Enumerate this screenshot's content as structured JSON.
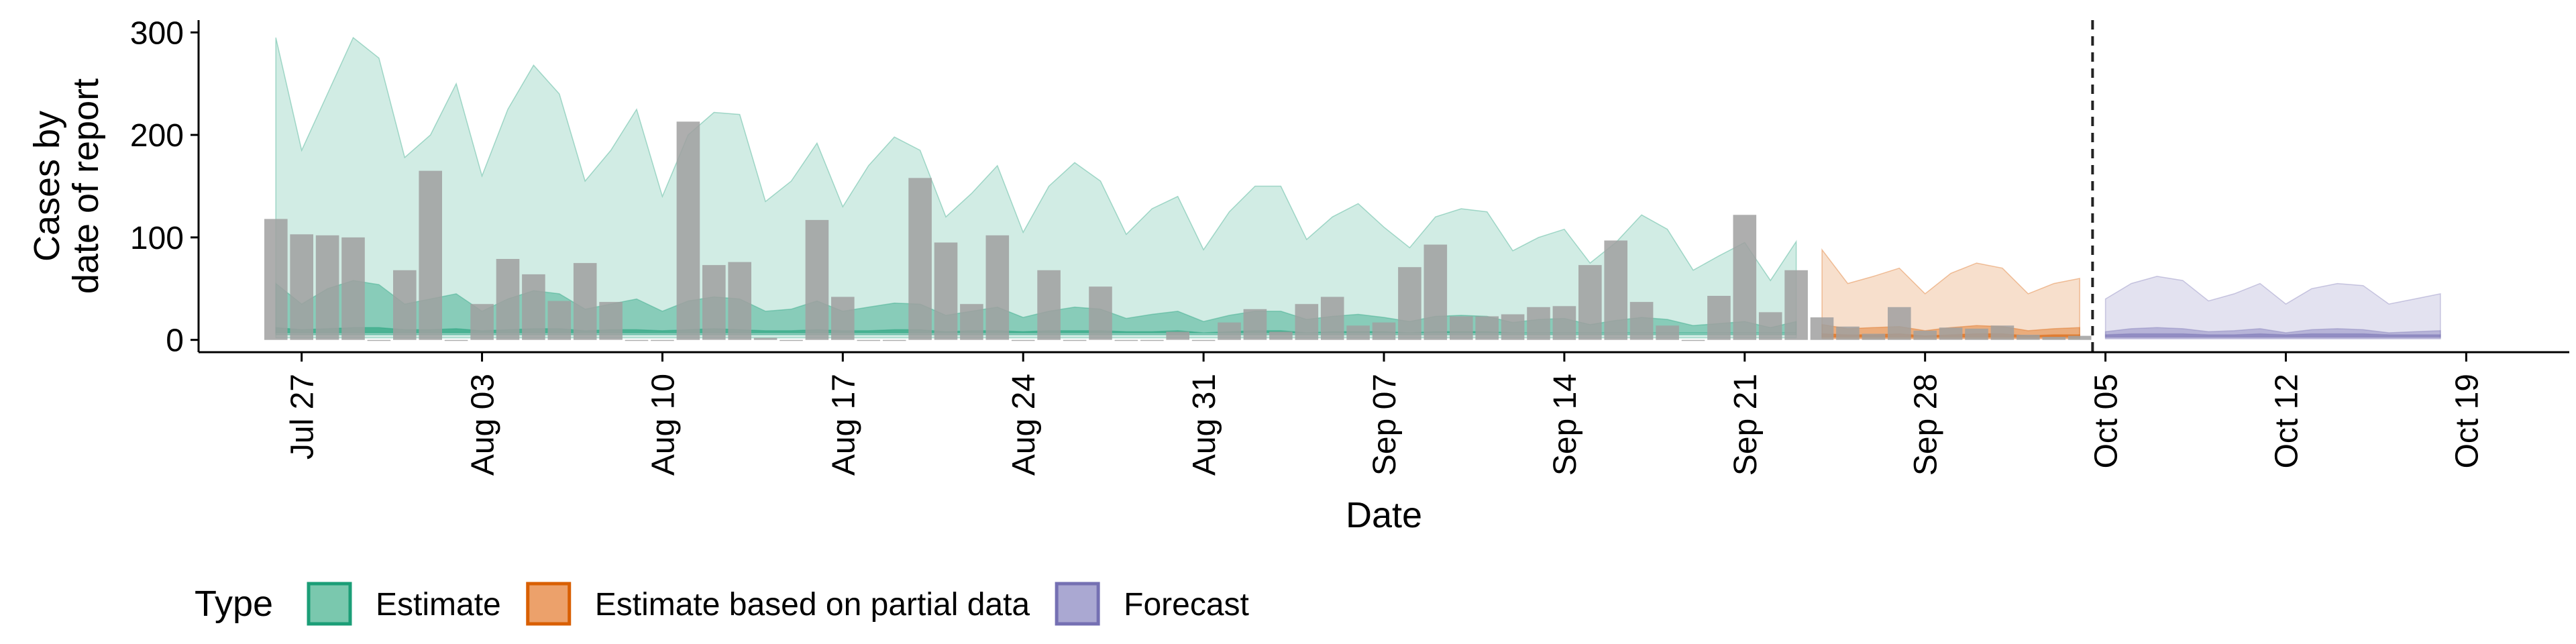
{
  "chart_data": {
    "type": "area",
    "xlabel": "Date",
    "ylabel_lines": [
      "Cases by",
      "date of report"
    ],
    "ylim": [
      -12,
      312
    ],
    "xlim": [
      "2020-07-23",
      "2020-10-23"
    ],
    "x_ticks": [
      "2020-07-27",
      "2020-08-03",
      "2020-08-10",
      "2020-08-17",
      "2020-08-24",
      "2020-08-31",
      "2020-09-07",
      "2020-09-14",
      "2020-09-21",
      "2020-09-28",
      "2020-10-05",
      "2020-10-12",
      "2020-10-19"
    ],
    "x_tick_labels": [
      "Jul 27",
      "Aug 03",
      "Aug 10",
      "Aug 17",
      "Aug 24",
      "Aug 31",
      "Sep 07",
      "Sep 14",
      "Sep 21",
      "Sep 28",
      "Oct 05",
      "Oct 12",
      "Oct 19"
    ],
    "y_ticks": [
      0,
      100,
      200,
      300
    ],
    "y_tick_labels": [
      "0",
      "100",
      "200",
      "300"
    ],
    "grid": false,
    "forecast_date": "2020-10-04",
    "legend": {
      "position": "bottom",
      "title": "Type",
      "entries": [
        {
          "label": "Estimate",
          "fill": "#7ac8ae",
          "border": "#1b9e77"
        },
        {
          "label": "Estimate based on partial data",
          "fill": "#eca16b",
          "border": "#d95f02"
        },
        {
          "label": "Forecast",
          "fill": "#aaa8d2",
          "border": "#7570b3"
        }
      ]
    },
    "colors": {
      "Estimate": "#1b9e77",
      "Estimate based on partial data": "#d95f02",
      "Forecast": "#7570b3",
      "bars": "#a0a0a0"
    },
    "bars": {
      "dates": [
        "2020-07-26",
        "2020-07-27",
        "2020-07-28",
        "2020-07-29",
        "2020-07-30",
        "2020-07-31",
        "2020-08-01",
        "2020-08-02",
        "2020-08-03",
        "2020-08-04",
        "2020-08-05",
        "2020-08-06",
        "2020-08-07",
        "2020-08-08",
        "2020-08-09",
        "2020-08-10",
        "2020-08-11",
        "2020-08-12",
        "2020-08-13",
        "2020-08-14",
        "2020-08-15",
        "2020-08-16",
        "2020-08-17",
        "2020-08-18",
        "2020-08-19",
        "2020-08-20",
        "2020-08-21",
        "2020-08-22",
        "2020-08-23",
        "2020-08-24",
        "2020-08-25",
        "2020-08-26",
        "2020-08-27",
        "2020-08-28",
        "2020-08-29",
        "2020-08-30",
        "2020-08-31",
        "2020-09-01",
        "2020-09-02",
        "2020-09-03",
        "2020-09-04",
        "2020-09-05",
        "2020-09-06",
        "2020-09-07",
        "2020-09-08",
        "2020-09-09",
        "2020-09-10",
        "2020-09-11",
        "2020-09-12",
        "2020-09-13",
        "2020-09-14",
        "2020-09-15",
        "2020-09-16",
        "2020-09-17",
        "2020-09-18",
        "2020-09-19",
        "2020-09-20",
        "2020-09-21",
        "2020-09-22",
        "2020-09-23",
        "2020-09-24",
        "2020-09-25",
        "2020-09-26",
        "2020-09-27",
        "2020-09-28",
        "2020-09-29",
        "2020-09-30",
        "2020-10-01",
        "2020-10-02",
        "2020-10-03",
        "2020-10-04"
      ],
      "values": [
        118,
        103,
        102,
        100,
        0,
        68,
        165,
        0,
        35,
        79,
        64,
        38,
        75,
        37,
        0,
        0,
        213,
        73,
        76,
        2,
        0,
        117,
        42,
        0,
        0,
        158,
        95,
        35,
        102,
        0,
        68,
        0,
        52,
        0,
        0,
        8,
        0,
        17,
        30,
        8,
        35,
        42,
        14,
        17,
        71,
        93,
        23,
        23,
        25,
        32,
        33,
        73,
        97,
        37,
        14,
        0,
        43,
        122,
        27,
        68,
        22,
        13,
        6,
        32,
        9,
        12,
        11,
        14,
        5,
        3,
        4
      ]
    },
    "series": [
      {
        "name": "Estimate",
        "x": [
          "2020-07-26",
          "2020-07-27",
          "2020-07-28",
          "2020-07-29",
          "2020-07-30",
          "2020-07-31",
          "2020-08-01",
          "2020-08-02",
          "2020-08-03",
          "2020-08-04",
          "2020-08-05",
          "2020-08-06",
          "2020-08-07",
          "2020-08-08",
          "2020-08-09",
          "2020-08-10",
          "2020-08-11",
          "2020-08-12",
          "2020-08-13",
          "2020-08-14",
          "2020-08-15",
          "2020-08-16",
          "2020-08-17",
          "2020-08-18",
          "2020-08-19",
          "2020-08-20",
          "2020-08-21",
          "2020-08-22",
          "2020-08-23",
          "2020-08-24",
          "2020-08-25",
          "2020-08-26",
          "2020-08-27",
          "2020-08-28",
          "2020-08-29",
          "2020-08-30",
          "2020-08-31",
          "2020-09-01",
          "2020-09-02",
          "2020-09-03",
          "2020-09-04",
          "2020-09-05",
          "2020-09-06",
          "2020-09-07",
          "2020-09-08",
          "2020-09-09",
          "2020-09-10",
          "2020-09-11",
          "2020-09-12",
          "2020-09-13",
          "2020-09-14",
          "2020-09-15",
          "2020-09-16",
          "2020-09-17",
          "2020-09-18",
          "2020-09-19",
          "2020-09-20",
          "2020-09-21",
          "2020-09-22",
          "2020-09-23"
        ],
        "lower_90": [
          2,
          2,
          2,
          2,
          2,
          2,
          2,
          2,
          2,
          2,
          2,
          2,
          2,
          2,
          2,
          2,
          2,
          2,
          2,
          2,
          2,
          2,
          2,
          2,
          2,
          2,
          2,
          2,
          2,
          2,
          2,
          2,
          2,
          2,
          2,
          2,
          2,
          2,
          2,
          2,
          2,
          2,
          2,
          2,
          2,
          2,
          2,
          2,
          2,
          2,
          2,
          2,
          2,
          2,
          2,
          2,
          2,
          2,
          2,
          2
        ],
        "upper_90": [
          295,
          185,
          240,
          295,
          275,
          178,
          200,
          250,
          160,
          225,
          268,
          240,
          155,
          185,
          225,
          140,
          200,
          222,
          220,
          135,
          155,
          192,
          130,
          170,
          198,
          185,
          120,
          143,
          170,
          105,
          150,
          173,
          155,
          103,
          128,
          140,
          88,
          125,
          150,
          150,
          98,
          120,
          133,
          110,
          90,
          120,
          128,
          125,
          87,
          100,
          108,
          75,
          95,
          122,
          108,
          68,
          82,
          95,
          58,
          96
        ],
        "lower_50": [
          5,
          5,
          5,
          5,
          5,
          5,
          5,
          5,
          5,
          5,
          5,
          5,
          5,
          5,
          5,
          5,
          5,
          5,
          5,
          5,
          5,
          5,
          5,
          5,
          5,
          5,
          5,
          5,
          5,
          5,
          5,
          5,
          5,
          5,
          5,
          5,
          5,
          5,
          5,
          5,
          5,
          5,
          5,
          5,
          5,
          5,
          5,
          5,
          5,
          5,
          5,
          5,
          5,
          5,
          5,
          5,
          5,
          5,
          5,
          5
        ],
        "upper_50": [
          55,
          35,
          50,
          58,
          54,
          35,
          40,
          45,
          28,
          40,
          48,
          45,
          30,
          35,
          40,
          28,
          38,
          42,
          40,
          28,
          30,
          38,
          28,
          32,
          36,
          35,
          24,
          28,
          32,
          22,
          28,
          32,
          30,
          21,
          25,
          28,
          18,
          24,
          28,
          28,
          20,
          23,
          25,
          22,
          18,
          23,
          24,
          23,
          17,
          20,
          21,
          15,
          19,
          22,
          20,
          14,
          16,
          18,
          12,
          18
        ],
        "lower_20": [
          7,
          7,
          7,
          7,
          7,
          7,
          7,
          7,
          7,
          7,
          7,
          7,
          7,
          7,
          7,
          7,
          7,
          7,
          7,
          7,
          7,
          7,
          7,
          7,
          7,
          7,
          7,
          7,
          7,
          7,
          7,
          7,
          7,
          7,
          7,
          7,
          7,
          7,
          7,
          7,
          7,
          7,
          7,
          7,
          7,
          7,
          7,
          7,
          7,
          7,
          7,
          7,
          7,
          7,
          7,
          7,
          7,
          7,
          7,
          7
        ],
        "upper_20": [
          12,
          10,
          11,
          12,
          12,
          10,
          10,
          11,
          9,
          10,
          11,
          11,
          9,
          10,
          10,
          9,
          10,
          11,
          10,
          9,
          9,
          10,
          9,
          9,
          10,
          10,
          8,
          9,
          9,
          8,
          9,
          9,
          9,
          8,
          8,
          9,
          7,
          8,
          9,
          9,
          7,
          8,
          8,
          8,
          7,
          8,
          8,
          8,
          7,
          7,
          7,
          7,
          7,
          7,
          7,
          7,
          7,
          7,
          7,
          7
        ]
      },
      {
        "name": "Estimate based on partial data",
        "x": [
          "2020-09-24",
          "2020-09-25",
          "2020-09-26",
          "2020-09-27",
          "2020-09-28",
          "2020-09-29",
          "2020-09-30",
          "2020-10-01",
          "2020-10-02",
          "2020-10-03",
          "2020-10-04"
        ],
        "lower_90": [
          1,
          1,
          1,
          1,
          1,
          1,
          1,
          1,
          1,
          1,
          1
        ],
        "upper_90": [
          88,
          55,
          62,
          70,
          45,
          65,
          75,
          70,
          45,
          55,
          60
        ],
        "lower_50": [
          2,
          2,
          2,
          2,
          2,
          2,
          2,
          2,
          2,
          2,
          2
        ],
        "upper_50": [
          15,
          11,
          12,
          13,
          9,
          12,
          14,
          13,
          9,
          11,
          12
        ],
        "lower_20": [
          3,
          3,
          3,
          3,
          3,
          3,
          3,
          3,
          3,
          3,
          3
        ],
        "upper_20": [
          6,
          5,
          5,
          6,
          4,
          5,
          6,
          6,
          4,
          5,
          5
        ]
      },
      {
        "name": "Forecast",
        "x": [
          "2020-10-05",
          "2020-10-06",
          "2020-10-07",
          "2020-10-08",
          "2020-10-09",
          "2020-10-10",
          "2020-10-11",
          "2020-10-12",
          "2020-10-13",
          "2020-10-14",
          "2020-10-15",
          "2020-10-16",
          "2020-10-17",
          "2020-10-18"
        ],
        "lower_90": [
          1,
          1,
          1,
          1,
          1,
          1,
          1,
          1,
          1,
          1,
          1,
          1,
          1,
          1
        ],
        "upper_90": [
          40,
          55,
          62,
          58,
          38,
          45,
          55,
          35,
          50,
          55,
          53,
          35,
          40,
          45
        ],
        "lower_50": [
          2,
          2,
          2,
          2,
          2,
          2,
          2,
          2,
          2,
          2,
          2,
          2,
          2,
          2
        ],
        "upper_50": [
          8,
          11,
          12,
          11,
          8,
          9,
          11,
          7,
          10,
          11,
          10,
          7,
          8,
          9
        ],
        "lower_20": [
          3,
          3,
          3,
          3,
          3,
          3,
          3,
          3,
          3,
          3,
          3,
          3,
          3,
          3
        ],
        "upper_20": [
          5,
          6,
          6,
          6,
          5,
          5,
          6,
          5,
          6,
          6,
          6,
          5,
          5,
          5
        ]
      }
    ]
  }
}
